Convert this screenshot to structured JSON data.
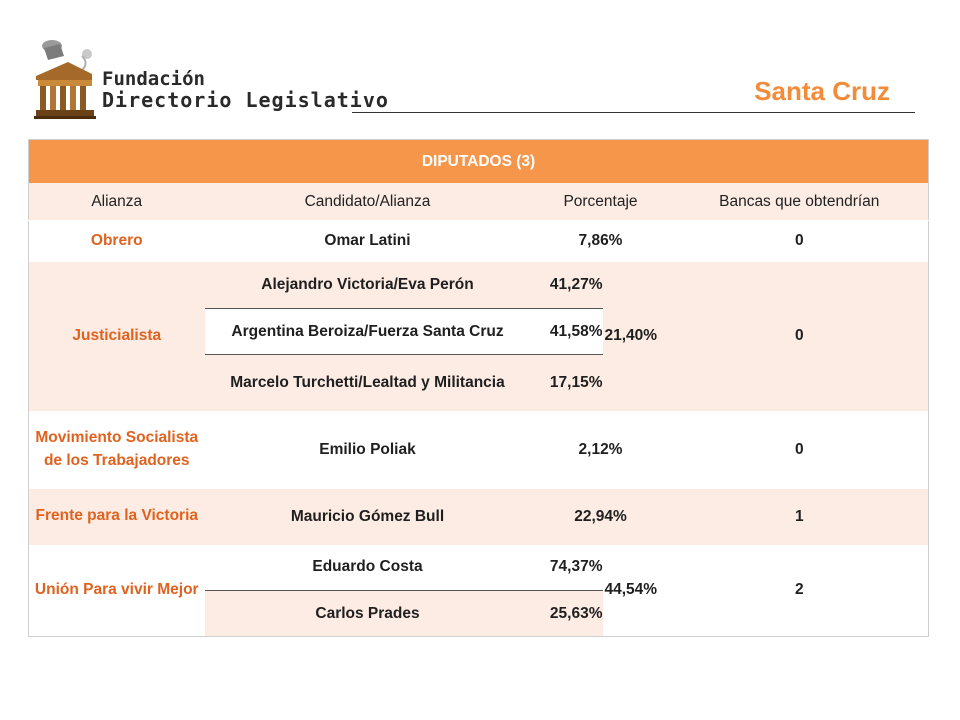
{
  "header": {
    "logo_line_1": "Fundación",
    "logo_line_2": "Directorio Legislativo",
    "page_title": "Santa Cruz"
  },
  "table": {
    "title": "DIPUTADOS (3)",
    "columns": [
      "Alianza",
      "Candidato/Alianza",
      "Porcentaje",
      "Bancas que obtendrían"
    ],
    "rows": [
      {
        "alliance": "Obrero",
        "candidates": [
          {
            "name": "Omar Latini",
            "pct": "7,86%"
          }
        ],
        "total": "",
        "seats": "0"
      },
      {
        "alliance": "Justicialista",
        "candidates": [
          {
            "name": "Alejandro Victoria/Eva Perón",
            "pct": "41,27%"
          },
          {
            "name": "Argentina Beroiza/Fuerza Santa Cruz",
            "pct": "41,58%"
          },
          {
            "name": "Marcelo Turchetti/Lealtad y Militancia",
            "pct": "17,15%"
          }
        ],
        "total": "21,40%",
        "seats": "0"
      },
      {
        "alliance": "Movimiento Socialista de los Trabajadores",
        "candidates": [
          {
            "name": "Emilio Poliak",
            "pct": "2,12%"
          }
        ],
        "total": "",
        "seats": "0"
      },
      {
        "alliance": "Frente para la Victoria",
        "candidates": [
          {
            "name": "Mauricio Gómez Bull",
            "pct": "22,94%"
          }
        ],
        "total": "",
        "seats": "1"
      },
      {
        "alliance": "Unión Para vivir Mejor",
        "candidates": [
          {
            "name": "Eduardo Costa",
            "pct": "74,37%"
          },
          {
            "name": "Carlos Prades",
            "pct": "25,63%"
          }
        ],
        "total": "44,54%",
        "seats": "2"
      }
    ]
  }
}
